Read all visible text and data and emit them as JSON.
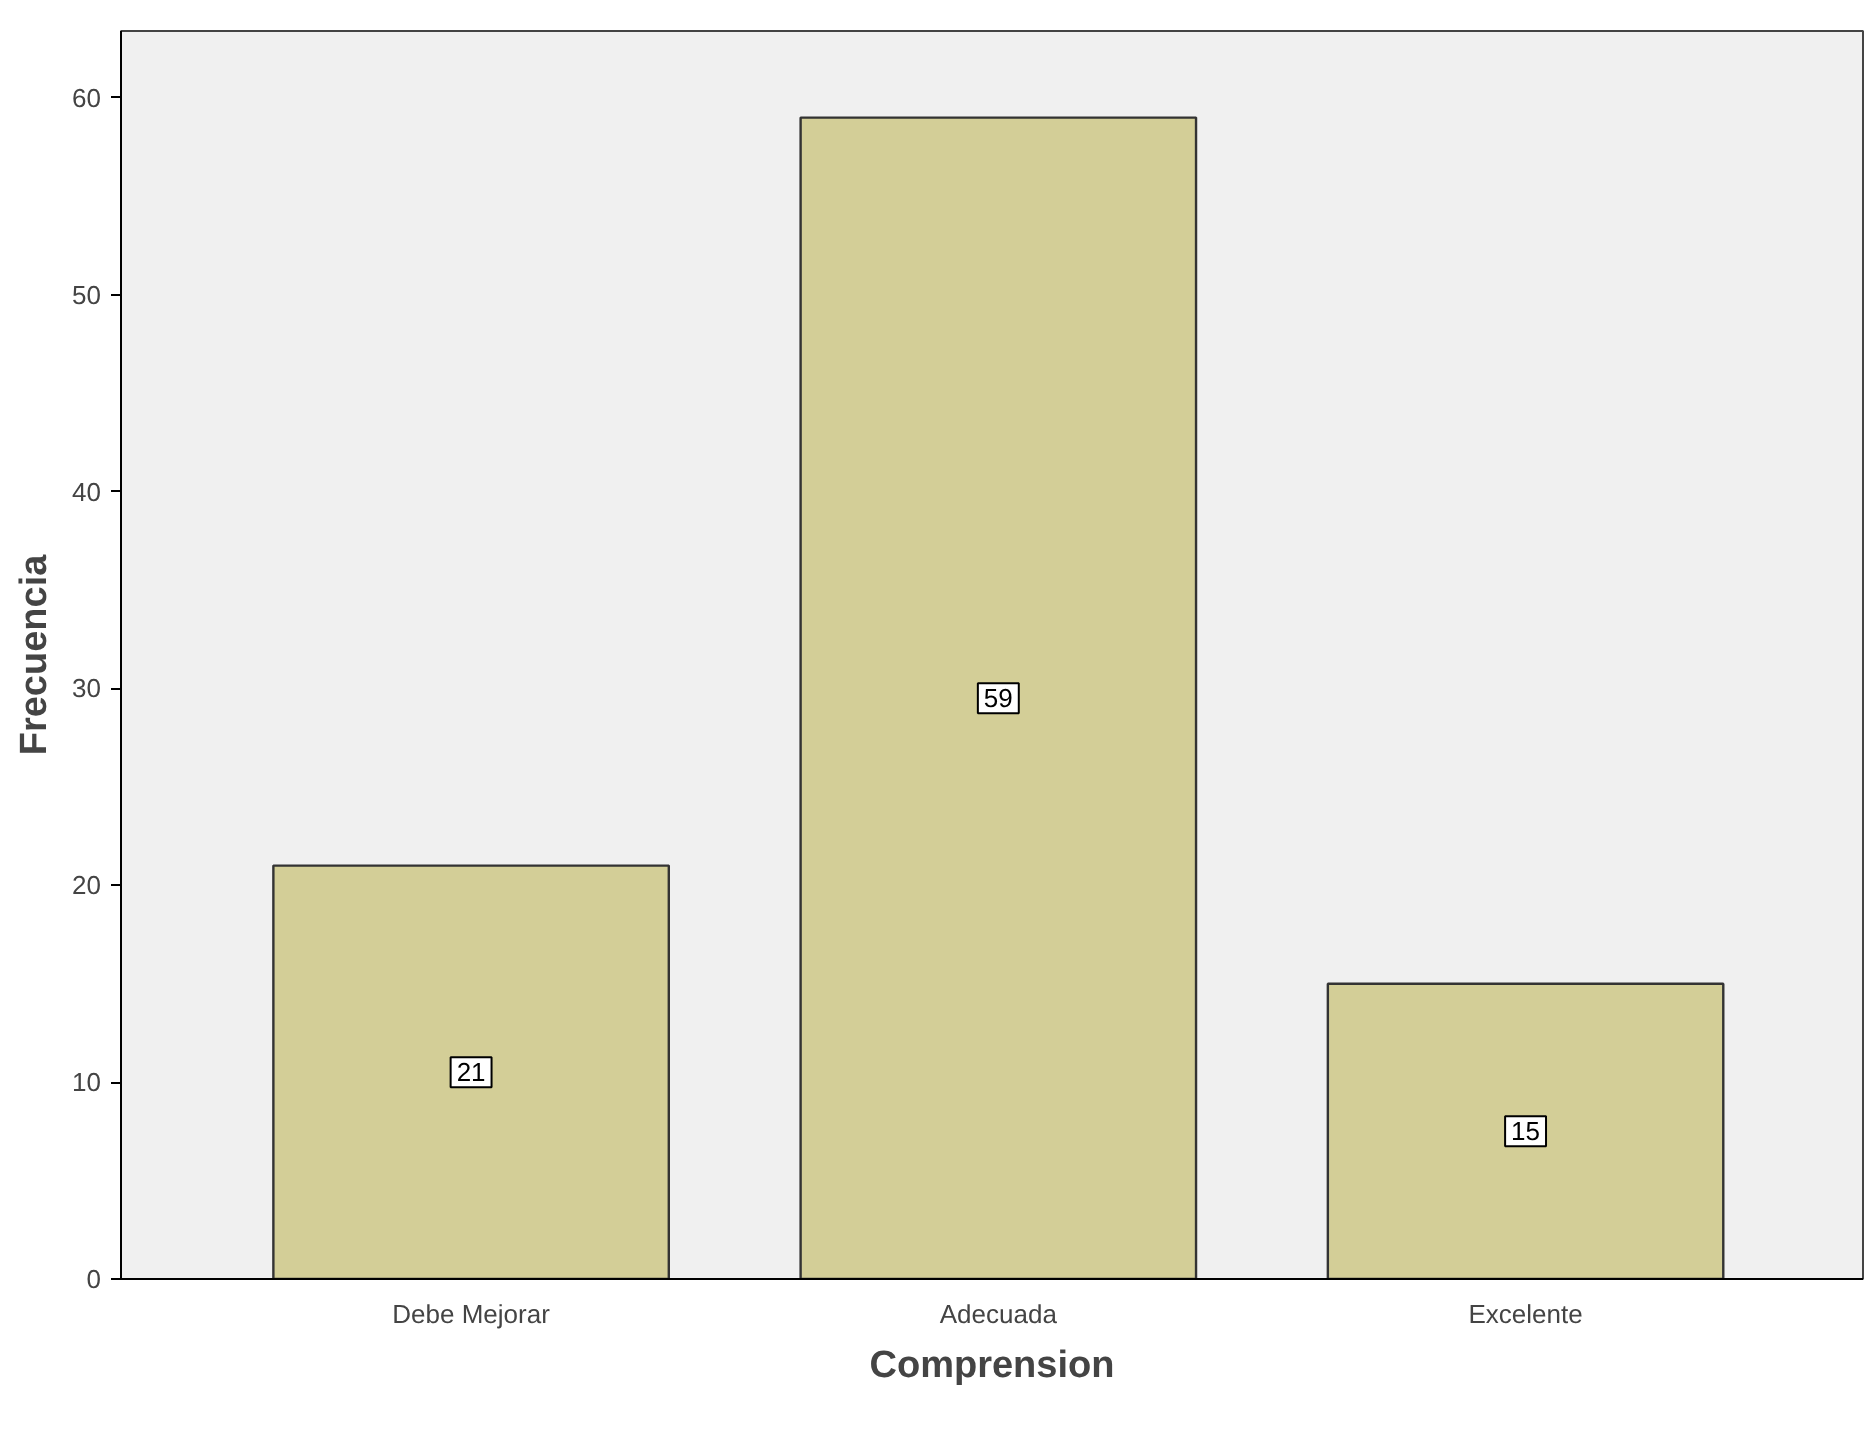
{
  "chart_data": {
    "type": "bar",
    "xlabel": "Comprension",
    "ylabel": "Frecuencia",
    "categories": [
      "Debe Mejorar",
      "Adecuada",
      "Excelente"
    ],
    "values": [
      21,
      59,
      15
    ],
    "color": "#d3ce97",
    "ylim": [
      0,
      63.4
    ],
    "yticks": [
      0,
      10,
      20,
      30,
      40,
      50,
      60
    ],
    "grid": false,
    "data_labels": true
  }
}
